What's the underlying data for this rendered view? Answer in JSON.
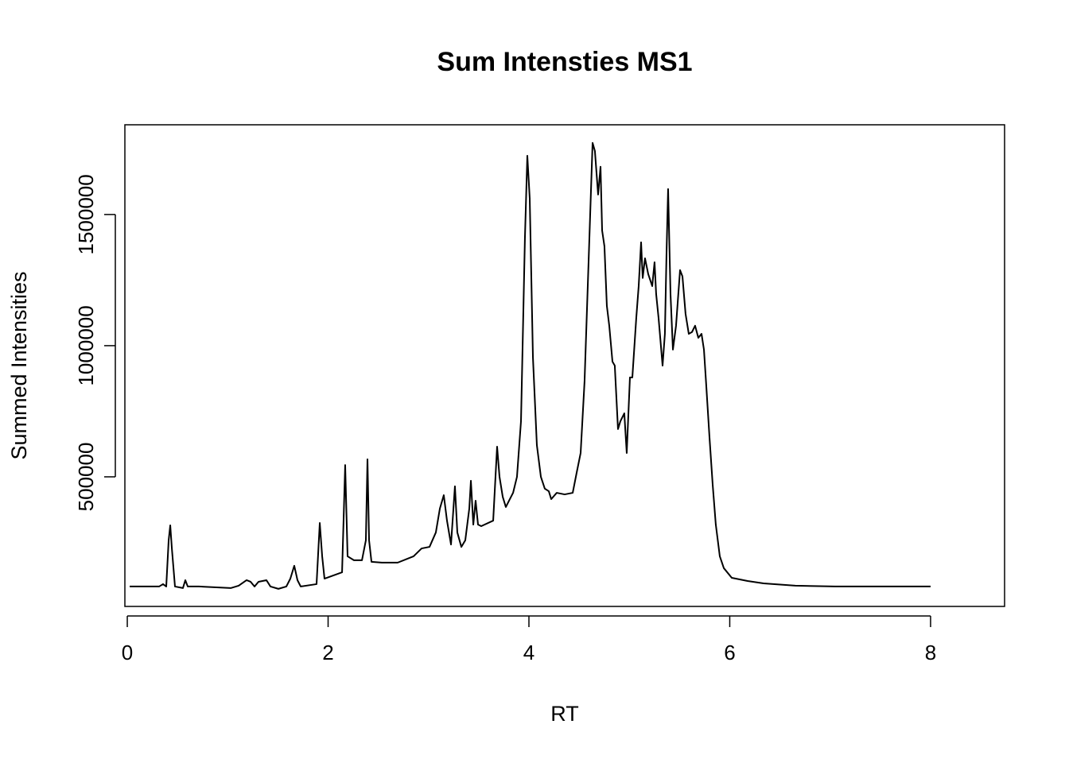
{
  "chart_data": {
    "type": "line",
    "title": "Sum Intensties MS1",
    "x_label": "RT",
    "y_label": "Summed Intensities",
    "color": "#000000",
    "x": [
      0.024,
      0.317,
      0.356,
      0.388,
      0.412,
      0.428,
      0.444,
      0.475,
      0.554,
      0.578,
      0.602,
      0.713,
      1.03,
      1.109,
      1.188,
      1.228,
      1.267,
      1.307,
      1.386,
      1.426,
      1.505,
      1.584,
      1.624,
      1.663,
      1.695,
      1.727,
      1.885,
      1.917,
      1.941,
      1.964,
      2.139,
      2.17,
      2.194,
      2.257,
      2.337,
      2.376,
      2.392,
      2.408,
      2.432,
      2.535,
      2.693,
      2.851,
      2.931,
      3.01,
      3.073,
      3.113,
      3.152,
      3.184,
      3.224,
      3.248,
      3.263,
      3.287,
      3.327,
      3.366,
      3.406,
      3.422,
      3.446,
      3.469,
      3.493,
      3.525,
      3.644,
      3.667,
      3.683,
      3.707,
      3.739,
      3.77,
      3.802,
      3.842,
      3.881,
      3.921,
      3.96,
      3.984,
      4.008,
      4.04,
      4.079,
      4.119,
      4.158,
      4.198,
      4.222,
      4.277,
      4.356,
      4.436,
      4.475,
      4.515,
      4.554,
      4.594,
      4.634,
      4.657,
      4.689,
      4.713,
      4.729,
      4.752,
      4.776,
      4.8,
      4.832,
      4.855,
      4.887,
      4.911,
      4.95,
      4.974,
      5.006,
      5.03,
      5.069,
      5.093,
      5.117,
      5.133,
      5.156,
      5.188,
      5.228,
      5.251,
      5.267,
      5.291,
      5.331,
      5.354,
      5.37,
      5.386,
      5.41,
      5.434,
      5.465,
      5.505,
      5.529,
      5.56,
      5.592,
      5.624,
      5.655,
      5.687,
      5.719,
      5.743,
      5.766,
      5.798,
      5.83,
      5.861,
      5.901,
      5.941,
      6.02,
      6.178,
      6.337,
      6.653,
      7.05,
      7.446,
      8.0
    ],
    "values": [
      82000,
      82000,
      91000,
      82000,
      258000,
      315000,
      227000,
      82000,
      76000,
      106000,
      82000,
      82000,
      76000,
      85000,
      106000,
      100000,
      82000,
      100000,
      106000,
      82000,
      73000,
      82000,
      112000,
      161000,
      106000,
      82000,
      91000,
      324000,
      197000,
      112000,
      136000,
      545000,
      197000,
      182000,
      182000,
      258000,
      567000,
      258000,
      176000,
      173000,
      173000,
      197000,
      227000,
      233000,
      288000,
      379000,
      430000,
      333000,
      242000,
      379000,
      464000,
      288000,
      233000,
      258000,
      379000,
      485000,
      318000,
      409000,
      318000,
      312000,
      333000,
      500000,
      615000,
      500000,
      424000,
      385000,
      409000,
      439000,
      500000,
      712000,
      1409000,
      1724000,
      1561000,
      955000,
      621000,
      500000,
      455000,
      445000,
      415000,
      439000,
      433000,
      439000,
      515000,
      591000,
      864000,
      1318000,
      1773000,
      1742000,
      1576000,
      1682000,
      1439000,
      1379000,
      1152000,
      1076000,
      939000,
      924000,
      682000,
      712000,
      742000,
      591000,
      879000,
      879000,
      1106000,
      1227000,
      1394000,
      1258000,
      1333000,
      1273000,
      1227000,
      1318000,
      1197000,
      1106000,
      924000,
      1045000,
      1348000,
      1597000,
      1197000,
      985000,
      1076000,
      1288000,
      1264000,
      1121000,
      1045000,
      1052000,
      1076000,
      1030000,
      1045000,
      985000,
      848000,
      652000,
      470000,
      318000,
      197000,
      152000,
      115000,
      103000,
      94000,
      85000,
      82000,
      82000,
      82000
    ],
    "xlim": [
      -0.024,
      8.737
    ],
    "ylim": [
      6000,
      1842000
    ],
    "xticks": [
      0,
      2,
      4,
      6,
      8
    ],
    "yticks": [
      500000,
      1000000,
      1500000
    ]
  }
}
